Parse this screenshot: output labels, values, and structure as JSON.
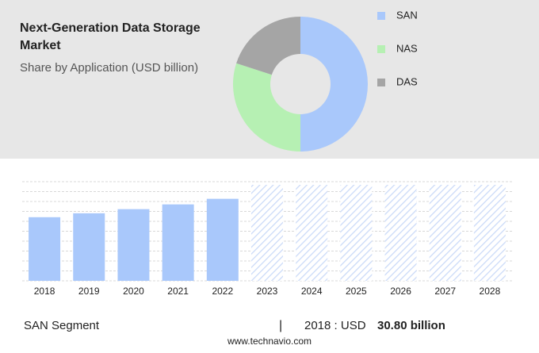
{
  "chart_data": [
    {
      "type": "donut",
      "title": "Next-Generation Data Storage Market",
      "subtitle": "Share by Application (USD billion)",
      "categories": [
        "SAN",
        "NAS",
        "DAS"
      ],
      "values": [
        50,
        30,
        20
      ],
      "colors": [
        "#a9c8fb",
        "#b6f0b3",
        "#a5a5a5"
      ]
    },
    {
      "type": "bar",
      "categories": [
        "2018",
        "2019",
        "2020",
        "2021",
        "2022",
        "2023",
        "2024",
        "2025",
        "2026",
        "2027",
        "2028"
      ],
      "values": [
        30.8,
        32.7,
        34.7,
        37,
        39.7,
        null,
        null,
        null,
        null,
        null,
        null
      ],
      "color": "#a9c8fb",
      "ylim": [
        0,
        48
      ],
      "grid": true
    }
  ],
  "footer": {
    "segment": "SAN Segment",
    "separator": "|",
    "year": "2018 : USD",
    "value": "30.80 billion",
    "source": "www.technavio.com"
  }
}
